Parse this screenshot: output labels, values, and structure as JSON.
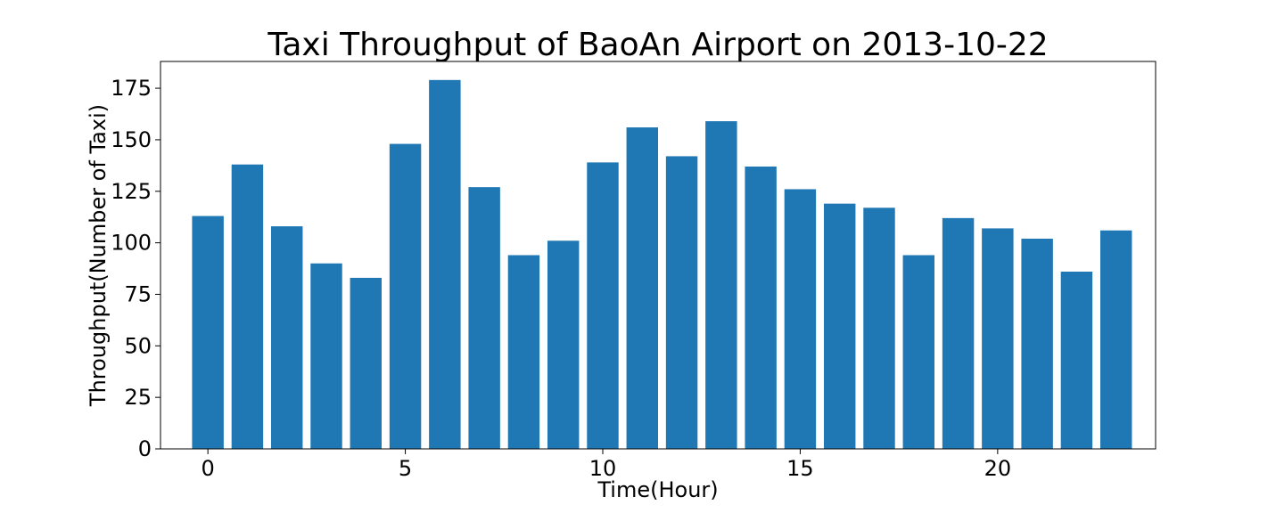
{
  "chart_data": {
    "type": "bar",
    "title": "Taxi Throughput of BaoAn Airport on 2013-10-22",
    "xlabel": "Time(Hour)",
    "ylabel": "Throughput(Number of Taxi)",
    "x": [
      0,
      1,
      2,
      3,
      4,
      5,
      6,
      7,
      8,
      9,
      10,
      11,
      12,
      13,
      14,
      15,
      16,
      17,
      18,
      19,
      20,
      21,
      22,
      23
    ],
    "values": [
      113,
      138,
      108,
      90,
      83,
      148,
      179,
      127,
      94,
      101,
      139,
      156,
      142,
      159,
      137,
      126,
      119,
      117,
      94,
      112,
      107,
      102,
      86,
      106
    ],
    "xlim": [
      -1.2,
      24.0
    ],
    "ylim": [
      0,
      188
    ],
    "xticks": [
      0,
      5,
      10,
      15,
      20
    ],
    "yticks": [
      0,
      25,
      50,
      75,
      100,
      125,
      150,
      175
    ],
    "bar_color": "#1f77b4",
    "grid": false,
    "legend": "none"
  }
}
